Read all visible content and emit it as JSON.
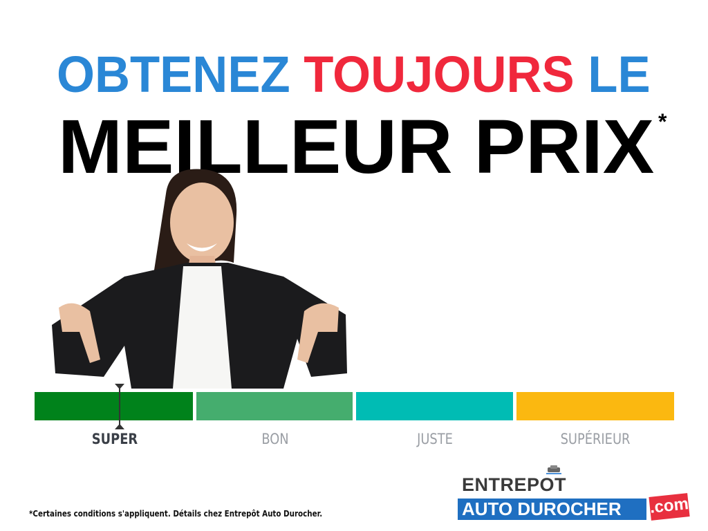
{
  "headline": {
    "line1": [
      {
        "text": "OBTENEZ",
        "color": "#2a87d6"
      },
      {
        "text": "TOUJOURS",
        "color": "#f0283c"
      },
      {
        "text": "LE",
        "color": "#2a87d6"
      }
    ],
    "line2": "MEILLEUR PRIX",
    "asterisk": "*"
  },
  "price_scale": {
    "segments": [
      {
        "label": "SUPER",
        "color": "#00821b",
        "active": true
      },
      {
        "label": "BON",
        "color": "#45ad6e",
        "active": false
      },
      {
        "label": "JUSTE",
        "color": "#00bcb4",
        "active": false
      },
      {
        "label": "SUPÉRIEUR",
        "color": "#fbb810",
        "active": false
      }
    ]
  },
  "disclaimer": "*Certaines conditions s'appliquent. Détails chez Entrepôt Auto Durocher.",
  "logo": {
    "top": "ENTREPOT",
    "band": "AUTO DUROCHER",
    "suffix": ".com"
  }
}
